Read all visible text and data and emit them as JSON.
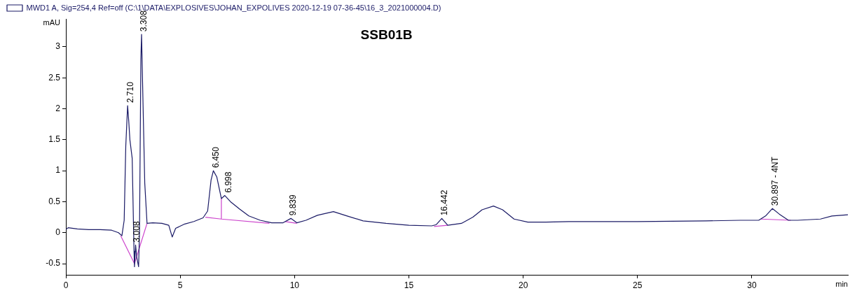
{
  "chart_data": {
    "type": "line",
    "title": "SSB01B",
    "xlabel": "min",
    "ylabel": "mAU",
    "xlim": [
      0,
      34.2
    ],
    "xticks": [
      0,
      5,
      10,
      15,
      20,
      25,
      30
    ],
    "ylim": [
      -0.68,
      3.45
    ],
    "yticks": [
      -0.5,
      0,
      0.5,
      1,
      1.5,
      2,
      2.5,
      3
    ],
    "grid": false,
    "legend": "top",
    "marker": "none",
    "line_style": "solid",
    "series": [
      {
        "name": "MWD1 A, Sig=254,4 Ref=off (C:\\1\\DATA\\EXPLOSIVES\\JOHAN_EXPOLIVES 2020-12-19 07-36-45\\16_3_2021000004.D)",
        "color": "#1a1a66",
        "x": [
          0,
          0.1,
          0.5,
          1,
          1.5,
          2,
          2.3,
          2.45,
          2.55,
          2.62,
          2.7,
          2.75,
          2.8,
          2.9,
          2.98,
          3.0,
          3.05,
          3.1,
          3.18,
          3.22,
          3.28,
          3.31,
          3.35,
          3.45,
          3.55,
          3.8,
          4.2,
          4.5,
          4.65,
          4.8,
          5.2,
          5.6,
          6.0,
          6.2,
          6.35,
          6.45,
          6.6,
          6.8,
          6.95,
          7.2,
          7.6,
          8.0,
          8.5,
          9.0,
          9.5,
          9.84,
          10.1,
          10.5,
          11,
          11.7,
          12.3,
          13,
          14,
          15,
          16,
          16.2,
          16.44,
          16.7,
          17.3,
          17.8,
          18.2,
          18.7,
          19.1,
          19.6,
          20.2,
          21,
          22,
          25,
          28,
          29.5,
          30.3,
          30.6,
          30.9,
          31.2,
          31.6,
          32,
          33,
          33.5,
          34.2
        ],
        "values": [
          0.05,
          0.08,
          0.06,
          0.05,
          0.05,
          0.04,
          0.0,
          -0.05,
          0.2,
          1.4,
          2.05,
          1.8,
          1.5,
          1.2,
          -0.3,
          -0.55,
          -0.2,
          -0.4,
          -0.55,
          0.0,
          2.8,
          3.2,
          2.5,
          0.8,
          0.15,
          0.16,
          0.15,
          0.12,
          -0.07,
          0.07,
          0.14,
          0.18,
          0.24,
          0.35,
          0.85,
          1.0,
          0.9,
          0.55,
          0.6,
          0.5,
          0.38,
          0.27,
          0.2,
          0.16,
          0.16,
          0.23,
          0.16,
          0.2,
          0.28,
          0.34,
          0.27,
          0.19,
          0.15,
          0.12,
          0.11,
          0.13,
          0.23,
          0.12,
          0.15,
          0.25,
          0.37,
          0.43,
          0.37,
          0.22,
          0.17,
          0.17,
          0.18,
          0.18,
          0.19,
          0.2,
          0.2,
          0.27,
          0.39,
          0.3,
          0.2,
          0.2,
          0.22,
          0.27,
          0.29
        ]
      },
      {
        "color": "#cc44cc",
        "x": [
          2.4,
          3.0,
          3.55,
          3.56,
          6.1,
          6.8,
          6.8,
          6.8,
          8.9,
          8.91,
          9.6,
          10.1,
          10.11,
          16.1,
          16.7,
          16.71,
          30.4,
          31.7
        ],
        "values": [
          -0.05,
          -0.5,
          0.15,
          null,
          0.25,
          0.22,
          0.55,
          0.22,
          0.15,
          null,
          0.18,
          0.15,
          null,
          0.1,
          0.12,
          null,
          0.22,
          0.2
        ]
      }
    ],
    "annotations": [
      {
        "text": "2.710",
        "x": 2.71,
        "y": 2.05
      },
      {
        "text": "3.008",
        "x": 3.008,
        "y": -0.2
      },
      {
        "text": "3.308",
        "x": 3.308,
        "y": 3.2
      },
      {
        "text": "6.450",
        "x": 6.45,
        "y": 1.0
      },
      {
        "text": "6.998",
        "x": 6.998,
        "y": 0.6
      },
      {
        "text": "9.839",
        "x": 9.839,
        "y": 0.23
      },
      {
        "text": "16.442",
        "x": 16.442,
        "y": 0.23
      },
      {
        "text": "30.897 - 4NT",
        "x": 30.897,
        "y": 0.39
      }
    ]
  }
}
